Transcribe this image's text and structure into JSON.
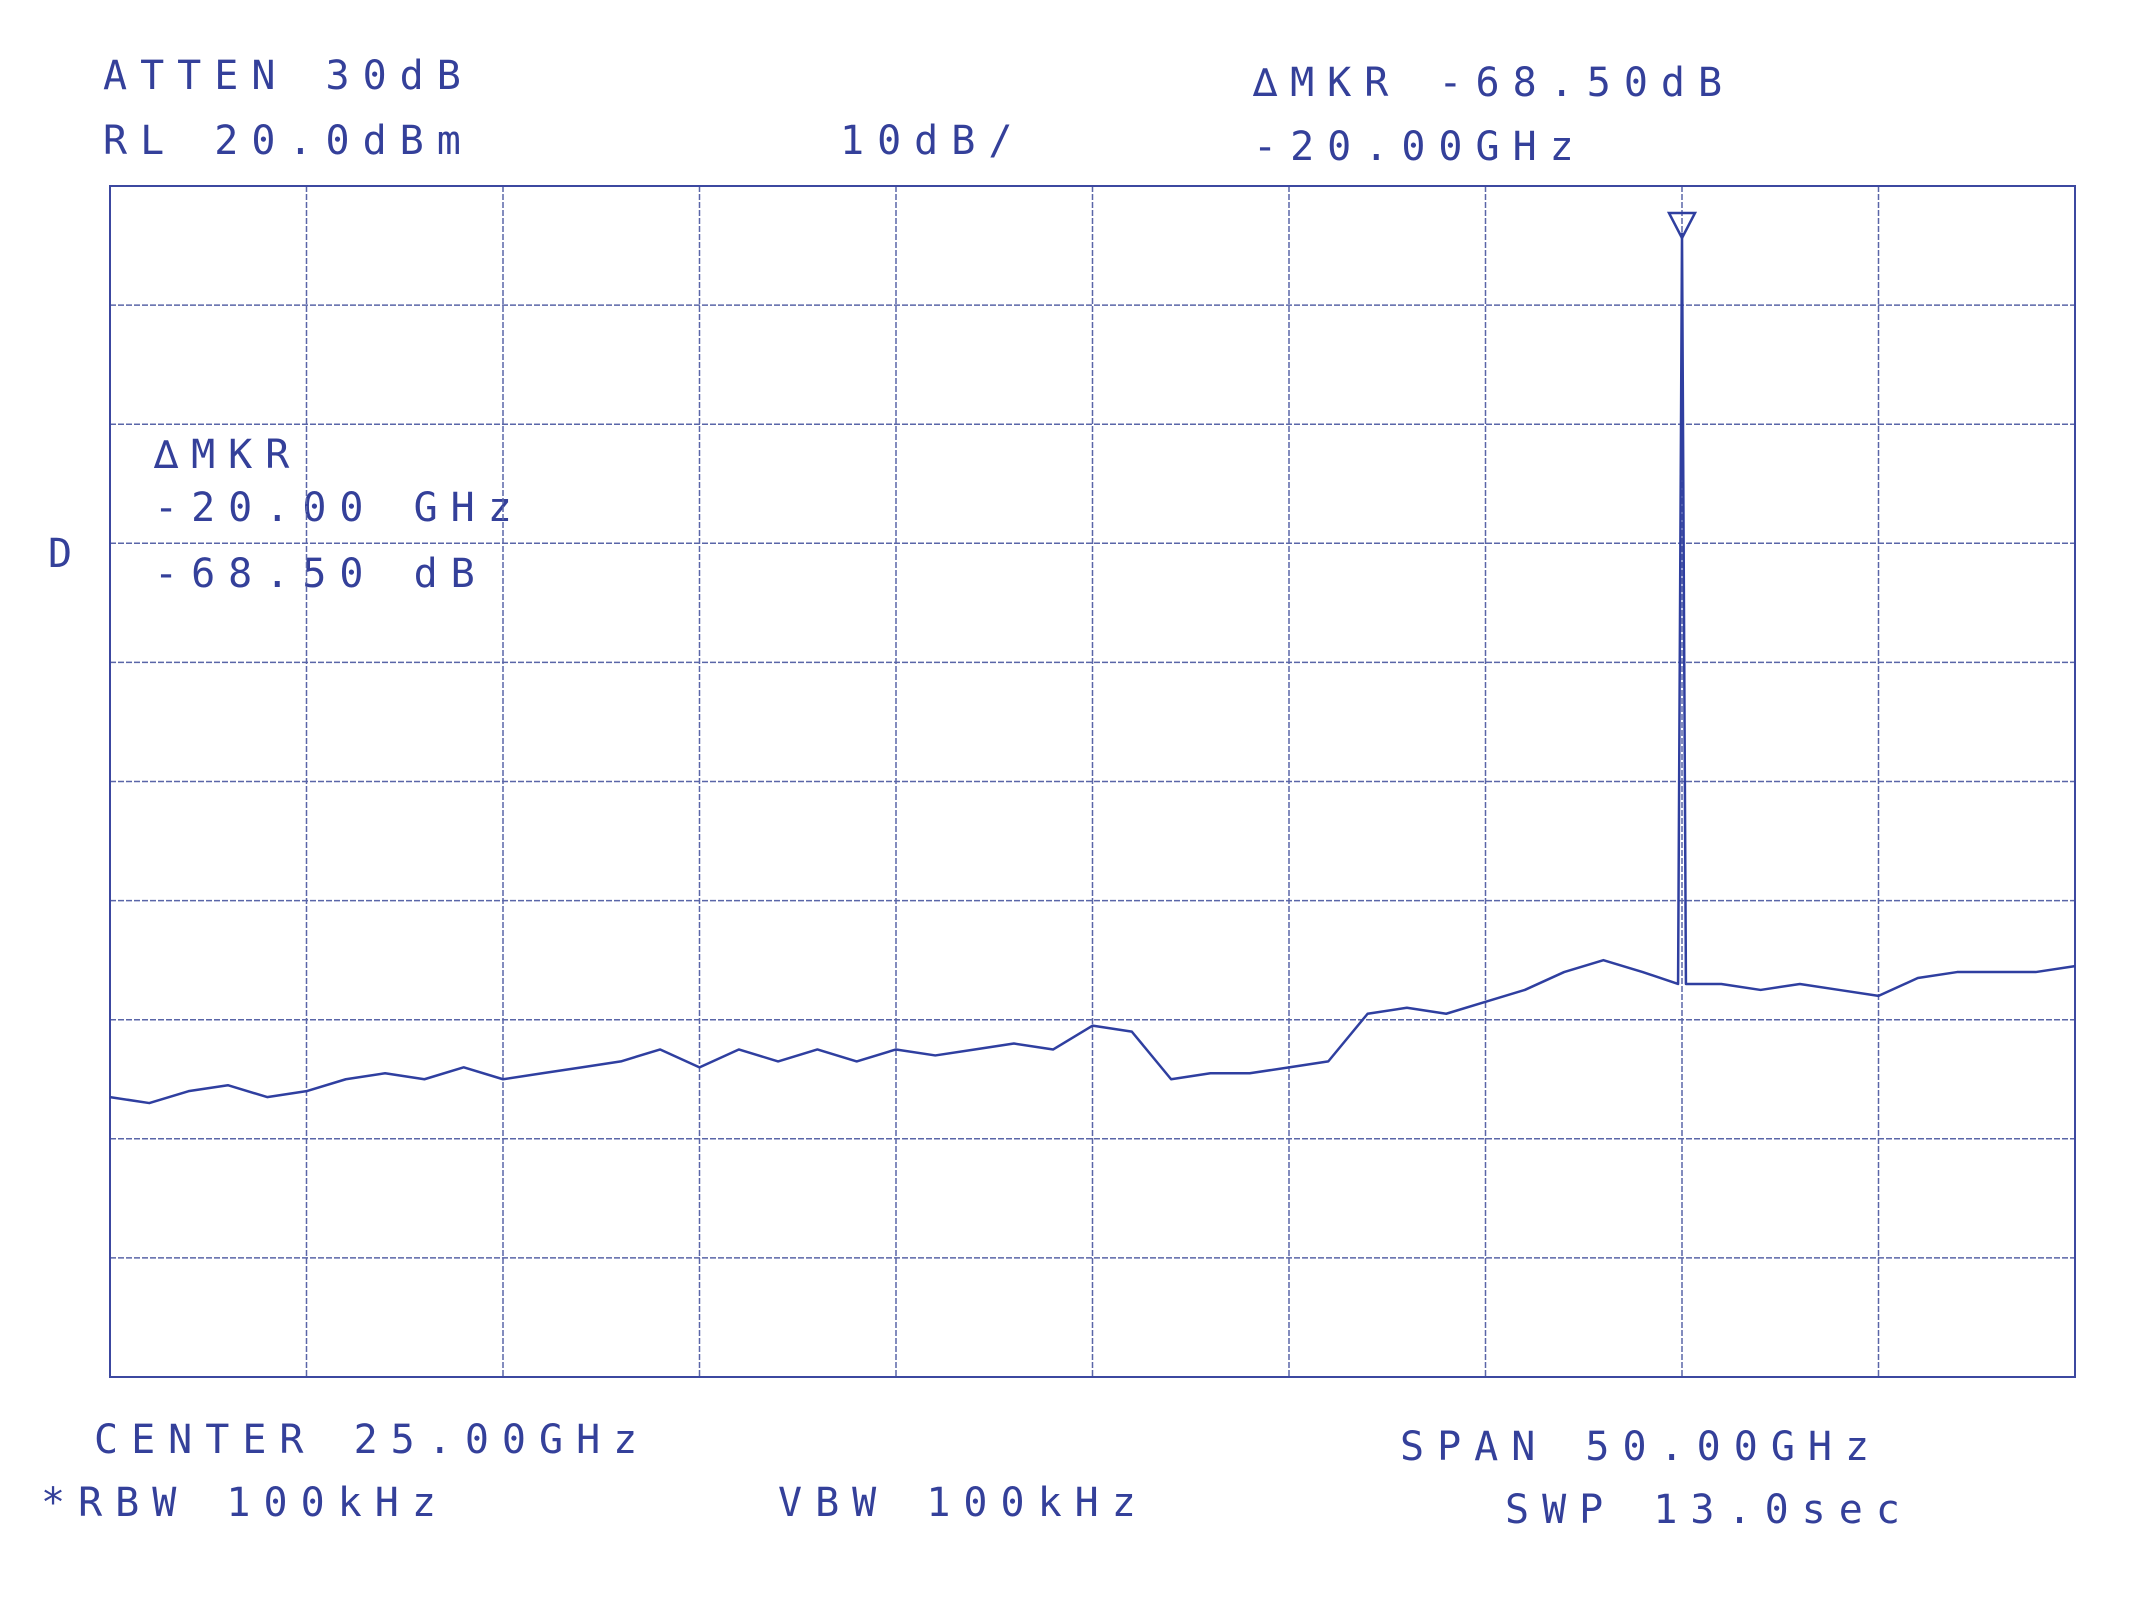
{
  "chart_data": {
    "type": "line",
    "annotations": [
      "ATTEN 30dB",
      "RL 20.0dBm",
      "10dB/",
      "∆MKR -68.50dB",
      "-20.00GHz",
      "∆MKR",
      "-20.00 GHz",
      "-68.50 dB",
      "D",
      "CENTER 25.00GHz",
      "*RBW 100kHz",
      "VBW 100kHz",
      "SPAN 50.00GHz",
      "SWP 13.0sec"
    ],
    "x": [
      0,
      1,
      2,
      3,
      4,
      5,
      6,
      7,
      8,
      9,
      10,
      11,
      12,
      13,
      14,
      15,
      16,
      17,
      18,
      19,
      20,
      21,
      22,
      23,
      24,
      25,
      26,
      27,
      28,
      29,
      30,
      31,
      32,
      33,
      34,
      35,
      36,
      37,
      38,
      39,
      39.9,
      40,
      40.1,
      41,
      42,
      43,
      44,
      45,
      46,
      47,
      48,
      49,
      50
    ],
    "values": [
      -56.5,
      -57,
      -56,
      -55.5,
      -56.5,
      -56,
      -55,
      -54.5,
      -55,
      -54,
      -55,
      -54.5,
      -54,
      -53.5,
      -52.5,
      -54,
      -52.5,
      -53.5,
      -52.5,
      -53.5,
      -52.5,
      -53,
      -52.5,
      -52,
      -52.5,
      -50.5,
      -51,
      -55,
      -54.5,
      -54.5,
      -54,
      -53.5,
      -49.5,
      -49,
      -49.5,
      -48.5,
      -47.5,
      -46,
      -45,
      -46,
      -47,
      16,
      -47,
      -47,
      -47.5,
      -47,
      -47.5,
      -48,
      -46.5,
      -46,
      -46,
      -46,
      -45.5
    ],
    "color": "#2f3fa0",
    "xlim": [
      0,
      50
    ],
    "ylim": [
      -80,
      20
    ],
    "xticks": [
      0,
      5,
      10,
      15,
      20,
      25,
      30,
      35,
      40,
      45,
      50
    ],
    "yticks": [
      20,
      10,
      0,
      -10,
      -20,
      -30,
      -40,
      -50,
      -60,
      -70,
      -80
    ],
    "grid": true
  }
}
